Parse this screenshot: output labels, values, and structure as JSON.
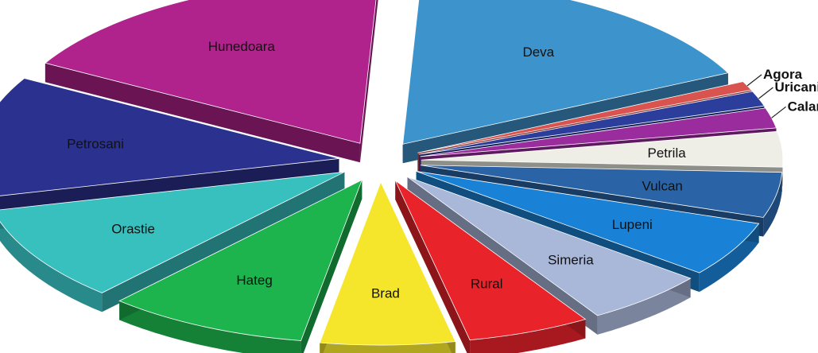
{
  "chart_data": {
    "type": "pie",
    "style": "3d-exploded",
    "title": "",
    "legend": "none",
    "slices": [
      {
        "label": "Deva",
        "value": 17.0,
        "color": "#3d93cc"
      },
      {
        "label": "Agora",
        "value": 0.9,
        "color": "#d9534f"
      },
      {
        "label": "Uricani",
        "value": 1.5,
        "color": "#2b3e9c"
      },
      {
        "label": "Calan",
        "value": 2.0,
        "color": "#9b2c9e"
      },
      {
        "label": "Petrila",
        "value": 3.5,
        "color": "#eeeee6"
      },
      {
        "label": "Vulcan",
        "value": 4.5,
        "color": "#2a64a6"
      },
      {
        "label": "Lupeni",
        "value": 5.5,
        "color": "#1a82d6"
      },
      {
        "label": "Simeria",
        "value": 5.5,
        "color": "#a9b7d9"
      },
      {
        "label": "Rural",
        "value": 5.5,
        "color": "#e8232a"
      },
      {
        "label": "Brad",
        "value": 6.0,
        "color": "#f5e62c"
      },
      {
        "label": "Hateg",
        "value": 9.0,
        "color": "#1db34d"
      },
      {
        "label": "Orastie",
        "value": 9.5,
        "color": "#38c0bf"
      },
      {
        "label": "Petrosani",
        "value": 12.0,
        "color": "#2b318f"
      },
      {
        "label": "Hunedoara",
        "value": 17.6,
        "color": "#b0228c"
      }
    ]
  }
}
